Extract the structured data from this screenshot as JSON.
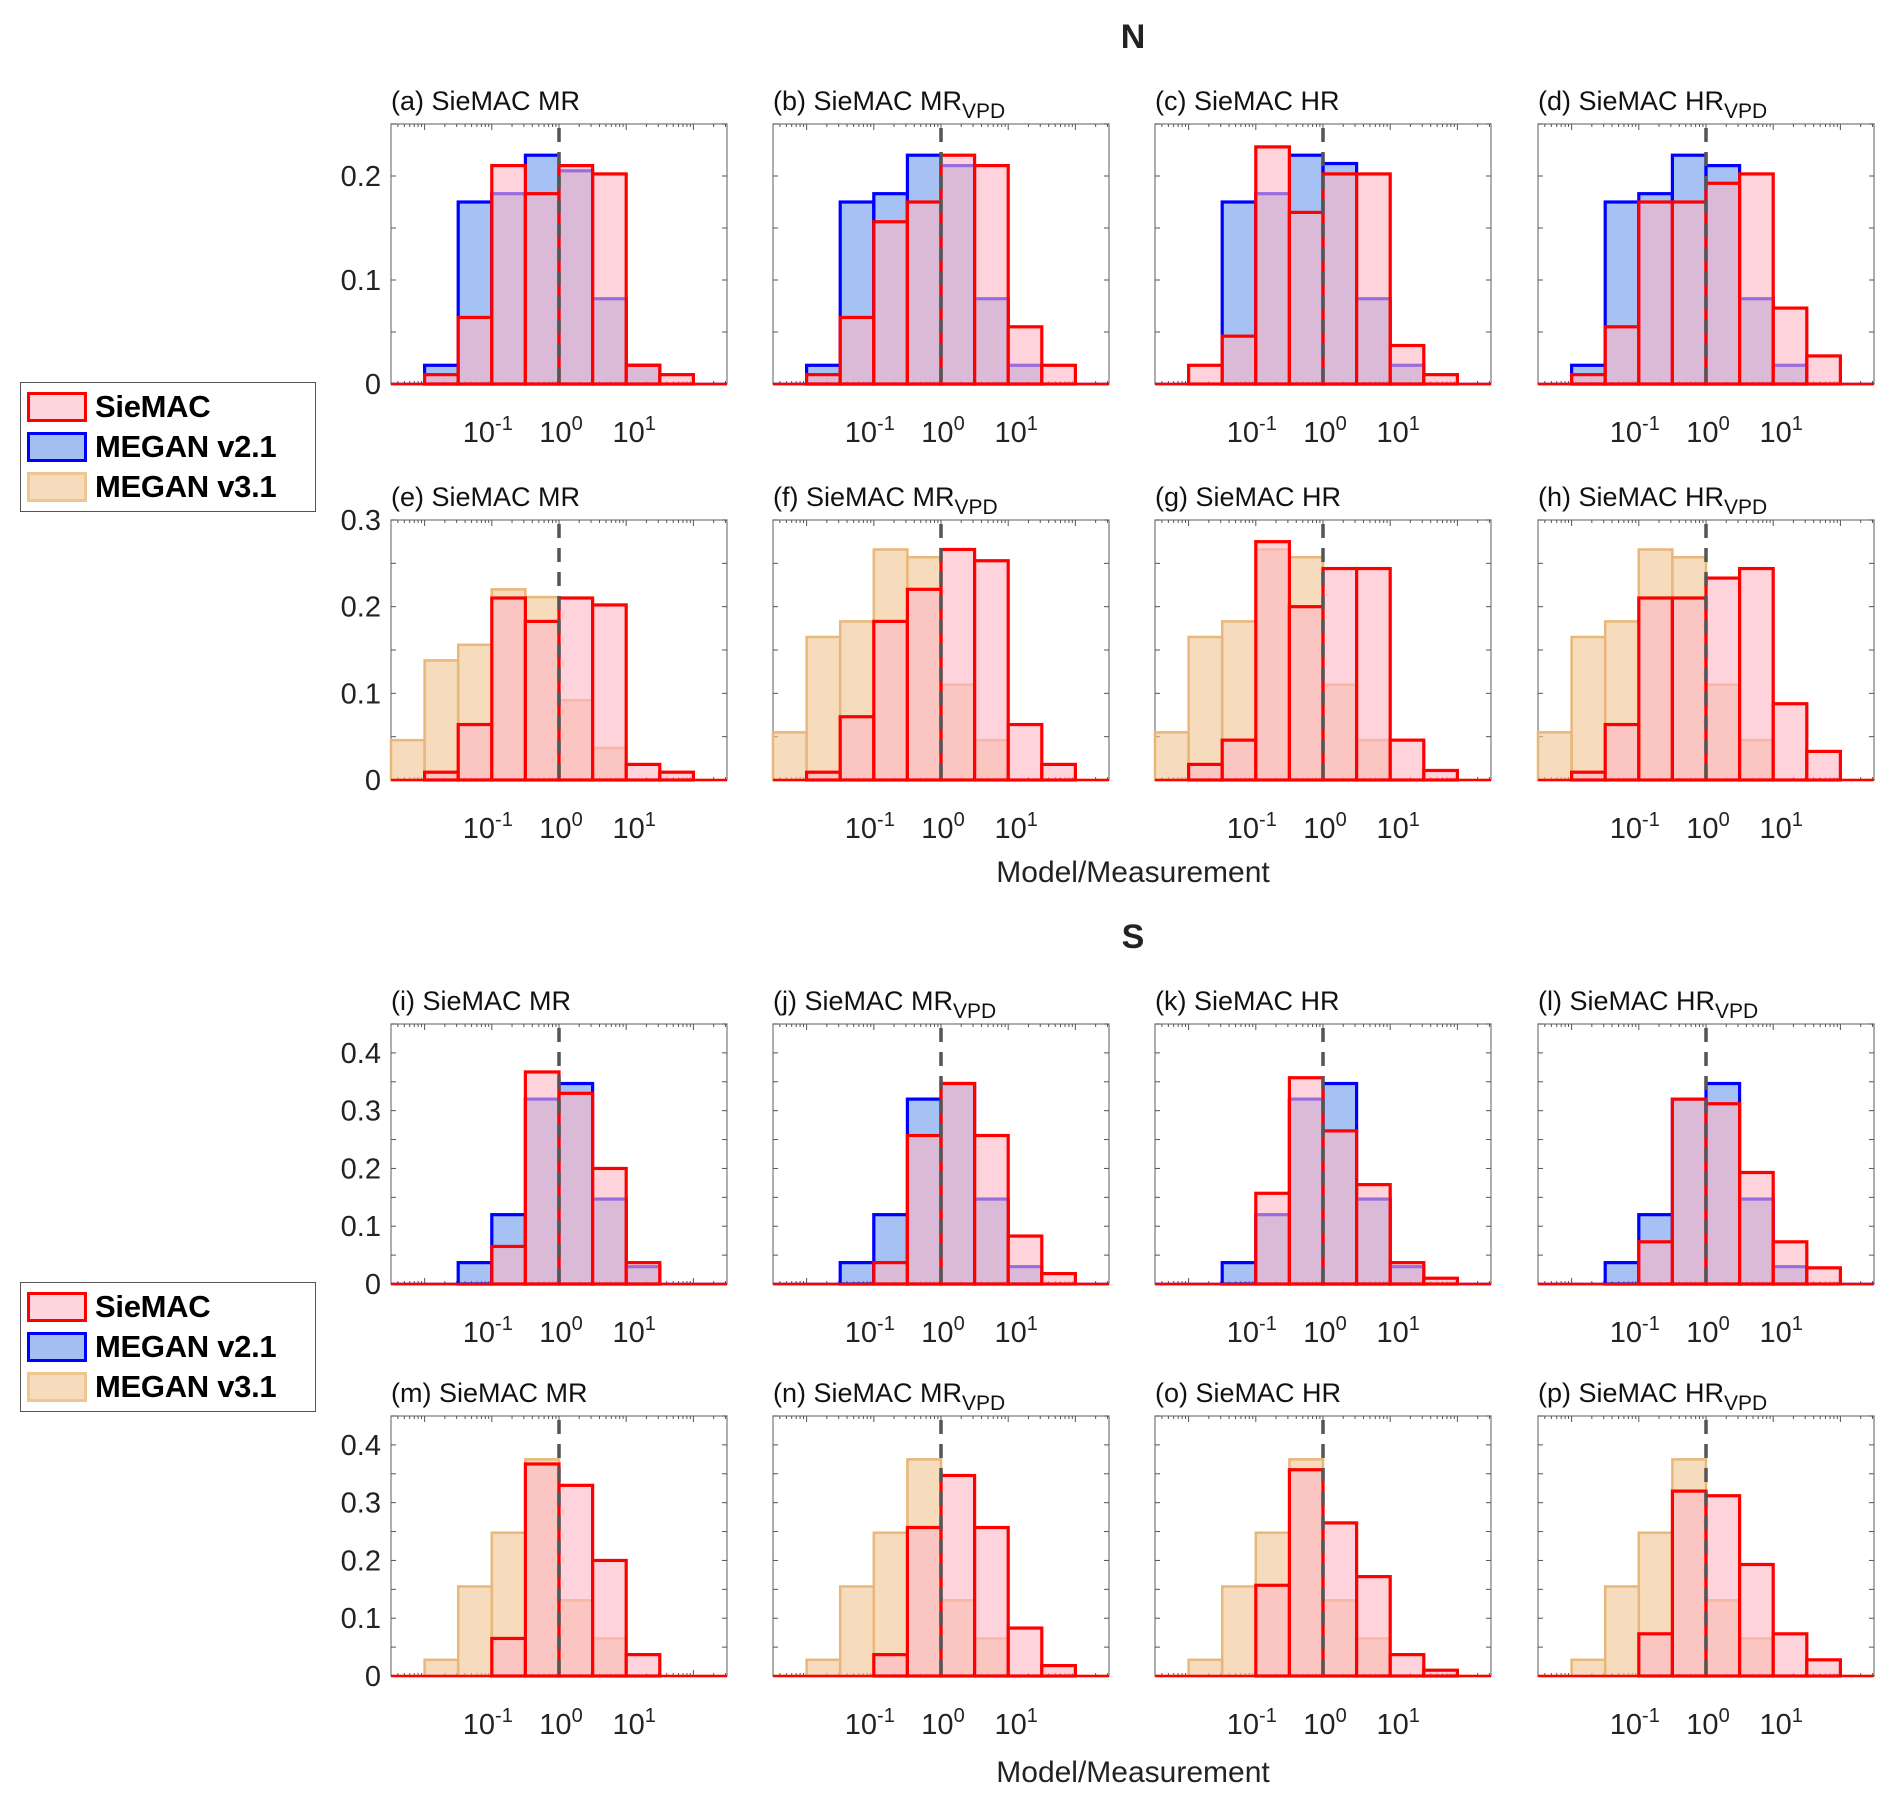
{
  "colors": {
    "siemac_edge": "#ff0000",
    "siemac_fill": "#ffb6c4",
    "megan21_edge": "#0000ff",
    "megan21_fill": "#4d84e8",
    "megan31_edge": "#e8b87a",
    "megan31_fill": "#f0c48f",
    "ref_line": "#555555"
  },
  "section_titles": {
    "north": "N",
    "south": "S"
  },
  "xlabel": "Model/Measurement",
  "legend": [
    {
      "key": "siemac",
      "label": "SieMAC"
    },
    {
      "key": "megan21",
      "label": "MEGAN v2.1"
    },
    {
      "key": "megan31",
      "label": "MEGAN v3.1"
    }
  ],
  "chart_data": {
    "type": "bar",
    "subtype": "histogram",
    "xscale": "log",
    "xlim": [
      -2.5,
      2.5
    ],
    "x_ticks": [
      "10^-1",
      "10^0",
      "10^1"
    ],
    "x_tick_values": [
      0.1,
      1,
      10
    ],
    "bin_edges_log10": [
      -2.5,
      -2.0,
      -1.5,
      -1.0,
      -0.5,
      0.0,
      0.5,
      1.0,
      1.5,
      2.0,
      2.5
    ],
    "reference_line": {
      "x": 1,
      "style": "dashed"
    },
    "ylabel": "",
    "panels": [
      {
        "id": "a",
        "title": "(a) SieMAC MR",
        "region": "N",
        "ylim": [
          0,
          0.25
        ],
        "yticks": [
          0,
          0.1,
          0.2
        ],
        "series": [
          {
            "name": "MEGAN v2.1",
            "key": "megan21",
            "values": [
              0,
              0.018,
              0.175,
              0.183,
              0.22,
              0.205,
              0.082,
              0.018,
              0,
              0,
              0
            ]
          },
          {
            "name": "SieMAC",
            "key": "siemac",
            "values": [
              0,
              0.009,
              0.064,
              0.21,
              0.183,
              0.21,
              0.202,
              0.018,
              0.009,
              0,
              0
            ]
          }
        ]
      },
      {
        "id": "b",
        "title": "(b) SieMAC MR",
        "title_sub": "VPD",
        "region": "N",
        "ylim": [
          0,
          0.25
        ],
        "yticks": [
          0,
          0.1,
          0.2
        ],
        "series": [
          {
            "name": "MEGAN v2.1",
            "key": "megan21",
            "values": [
              0,
              0.018,
              0.175,
              0.183,
              0.22,
              0.21,
              0.082,
              0.018,
              0,
              0,
              0
            ]
          },
          {
            "name": "SieMAC",
            "key": "siemac",
            "values": [
              0,
              0.009,
              0.064,
              0.156,
              0.175,
              0.22,
              0.21,
              0.055,
              0.018,
              0,
              0
            ]
          }
        ]
      },
      {
        "id": "c",
        "title": "(c) SieMAC HR",
        "region": "N",
        "ylim": [
          0,
          0.25
        ],
        "yticks": [
          0,
          0.1,
          0.2
        ],
        "series": [
          {
            "name": "MEGAN v2.1",
            "key": "megan21",
            "values": [
              0,
              0,
              0.175,
              0.183,
              0.22,
              0.212,
              0.082,
              0.018,
              0,
              0,
              0
            ]
          },
          {
            "name": "SieMAC",
            "key": "siemac",
            "values": [
              0,
              0.018,
              0.046,
              0.228,
              0.165,
              0.202,
              0.202,
              0.037,
              0.009,
              0,
              0
            ]
          }
        ]
      },
      {
        "id": "d",
        "title": "(d) SieMAC HR",
        "title_sub": "VPD",
        "region": "N",
        "ylim": [
          0,
          0.25
        ],
        "yticks": [
          0,
          0.1,
          0.2
        ],
        "series": [
          {
            "name": "MEGAN v2.1",
            "key": "megan21",
            "values": [
              0,
              0.018,
              0.175,
              0.183,
              0.22,
              0.21,
              0.082,
              0.018,
              0,
              0,
              0
            ]
          },
          {
            "name": "SieMAC",
            "key": "siemac",
            "values": [
              0,
              0.009,
              0.055,
              0.175,
              0.175,
              0.193,
              0.202,
              0.073,
              0.027,
              0,
              0
            ]
          }
        ]
      },
      {
        "id": "e",
        "title": "(e) SieMAC MR",
        "region": "N",
        "ylim": [
          0,
          0.3
        ],
        "yticks": [
          0,
          0.1,
          0.2,
          0.3
        ],
        "series": [
          {
            "name": "MEGAN v3.1",
            "key": "megan31",
            "values": [
              0.046,
              0.138,
              0.156,
              0.22,
              0.211,
              0.092,
              0.037,
              0,
              0,
              0,
              0
            ]
          },
          {
            "name": "SieMAC",
            "key": "siemac",
            "values": [
              0,
              0.009,
              0.064,
              0.21,
              0.183,
              0.21,
              0.202,
              0.018,
              0.009,
              0,
              0
            ]
          }
        ]
      },
      {
        "id": "f",
        "title": "(f) SieMAC MR",
        "title_sub": "VPD",
        "region": "N",
        "ylim": [
          0,
          0.3
        ],
        "yticks": [
          0,
          0.1,
          0.2,
          0.3
        ],
        "series": [
          {
            "name": "MEGAN v3.1",
            "key": "megan31",
            "values": [
              0.055,
              0.165,
              0.183,
              0.266,
              0.257,
              0.11,
              0.046,
              0,
              0,
              0,
              0
            ]
          },
          {
            "name": "SieMAC",
            "key": "siemac",
            "values": [
              0,
              0.009,
              0.073,
              0.183,
              0.22,
              0.266,
              0.253,
              0.064,
              0.018,
              0,
              0
            ]
          }
        ]
      },
      {
        "id": "g",
        "title": "(g) SieMAC HR",
        "region": "N",
        "ylim": [
          0,
          0.3
        ],
        "yticks": [
          0,
          0.1,
          0.2,
          0.3
        ],
        "series": [
          {
            "name": "MEGAN v3.1",
            "key": "megan31",
            "values": [
              0.055,
              0.165,
              0.183,
              0.266,
              0.257,
              0.11,
              0.046,
              0,
              0,
              0,
              0
            ]
          },
          {
            "name": "SieMAC",
            "key": "siemac",
            "values": [
              0,
              0.018,
              0.046,
              0.275,
              0.2,
              0.244,
              0.244,
              0.046,
              0.011,
              0,
              0
            ]
          }
        ]
      },
      {
        "id": "h",
        "title": "(h) SieMAC HR",
        "title_sub": "VPD",
        "region": "N",
        "ylim": [
          0,
          0.3
        ],
        "yticks": [
          0,
          0.1,
          0.2,
          0.3
        ],
        "series": [
          {
            "name": "MEGAN v3.1",
            "key": "megan31",
            "values": [
              0.055,
              0.165,
              0.183,
              0.266,
              0.257,
              0.11,
              0.046,
              0,
              0,
              0,
              0
            ]
          },
          {
            "name": "SieMAC",
            "key": "siemac",
            "values": [
              0,
              0.009,
              0.064,
              0.21,
              0.21,
              0.233,
              0.244,
              0.088,
              0.033,
              0,
              0
            ]
          }
        ]
      },
      {
        "id": "i",
        "title": "(i) SieMAC MR",
        "region": "S",
        "ylim": [
          0,
          0.45
        ],
        "yticks": [
          0,
          0.1,
          0.2,
          0.3,
          0.4
        ],
        "series": [
          {
            "name": "MEGAN v2.1",
            "key": "megan21",
            "values": [
              0,
              0,
              0.037,
              0.12,
              0.32,
              0.347,
              0.147,
              0.03,
              0,
              0,
              0
            ]
          },
          {
            "name": "SieMAC",
            "key": "siemac",
            "values": [
              0,
              0,
              0,
              0.065,
              0.367,
              0.33,
              0.2,
              0.037,
              0,
              0,
              0
            ]
          }
        ]
      },
      {
        "id": "j",
        "title": "(j) SieMAC MR",
        "title_sub": "VPD",
        "region": "S",
        "ylim": [
          0,
          0.45
        ],
        "yticks": [
          0,
          0.1,
          0.2,
          0.3,
          0.4
        ],
        "series": [
          {
            "name": "MEGAN v2.1",
            "key": "megan21",
            "values": [
              0,
              0,
              0.037,
              0.12,
              0.32,
              0.347,
              0.147,
              0.03,
              0,
              0,
              0
            ]
          },
          {
            "name": "SieMAC",
            "key": "siemac",
            "values": [
              0,
              0,
              0,
              0.037,
              0.257,
              0.347,
              0.257,
              0.083,
              0.018,
              0,
              0
            ]
          }
        ]
      },
      {
        "id": "k",
        "title": "(k) SieMAC HR",
        "region": "S",
        "ylim": [
          0,
          0.45
        ],
        "yticks": [
          0,
          0.1,
          0.2,
          0.3,
          0.4
        ],
        "series": [
          {
            "name": "MEGAN v2.1",
            "key": "megan21",
            "values": [
              0,
              0,
              0.037,
              0.12,
              0.32,
              0.347,
              0.147,
              0.03,
              0,
              0,
              0
            ]
          },
          {
            "name": "SieMAC",
            "key": "siemac",
            "values": [
              0,
              0,
              0,
              0.157,
              0.357,
              0.265,
              0.172,
              0.037,
              0.01,
              0,
              0
            ]
          }
        ]
      },
      {
        "id": "l",
        "title": "(l) SieMAC HR",
        "title_sub": "VPD",
        "region": "S",
        "ylim": [
          0,
          0.45
        ],
        "yticks": [
          0,
          0.1,
          0.2,
          0.3,
          0.4
        ],
        "series": [
          {
            "name": "MEGAN v2.1",
            "key": "megan21",
            "values": [
              0,
              0,
              0.037,
              0.12,
              0.32,
              0.347,
              0.147,
              0.03,
              0,
              0,
              0
            ]
          },
          {
            "name": "SieMAC",
            "key": "siemac",
            "values": [
              0,
              0,
              0,
              0.073,
              0.32,
              0.312,
              0.193,
              0.073,
              0.028,
              0,
              0
            ]
          }
        ]
      },
      {
        "id": "m",
        "title": "(m) SieMAC MR",
        "region": "S",
        "ylim": [
          0,
          0.45
        ],
        "yticks": [
          0,
          0.1,
          0.2,
          0.3,
          0.4
        ],
        "series": [
          {
            "name": "MEGAN v3.1",
            "key": "megan31",
            "values": [
              0,
              0.028,
              0.155,
              0.248,
              0.375,
              0.131,
              0.065,
              0,
              0,
              0,
              0
            ]
          },
          {
            "name": "SieMAC",
            "key": "siemac",
            "values": [
              0,
              0,
              0,
              0.065,
              0.367,
              0.33,
              0.2,
              0.037,
              0,
              0,
              0
            ]
          }
        ]
      },
      {
        "id": "n",
        "title": "(n) SieMAC MR",
        "title_sub": "VPD",
        "region": "S",
        "ylim": [
          0,
          0.45
        ],
        "yticks": [
          0,
          0.1,
          0.2,
          0.3,
          0.4
        ],
        "series": [
          {
            "name": "MEGAN v3.1",
            "key": "megan31",
            "values": [
              0,
              0.028,
              0.155,
              0.248,
              0.375,
              0.131,
              0.065,
              0,
              0,
              0,
              0
            ]
          },
          {
            "name": "SieMAC",
            "key": "siemac",
            "values": [
              0,
              0,
              0,
              0.037,
              0.257,
              0.347,
              0.257,
              0.083,
              0.018,
              0,
              0
            ]
          }
        ]
      },
      {
        "id": "o",
        "title": "(o) SieMAC HR",
        "region": "S",
        "ylim": [
          0,
          0.45
        ],
        "yticks": [
          0,
          0.1,
          0.2,
          0.3,
          0.4
        ],
        "series": [
          {
            "name": "MEGAN v3.1",
            "key": "megan31",
            "values": [
              0,
              0.028,
              0.155,
              0.248,
              0.375,
              0.131,
              0.065,
              0,
              0,
              0,
              0
            ]
          },
          {
            "name": "SieMAC",
            "key": "siemac",
            "values": [
              0,
              0,
              0,
              0.157,
              0.357,
              0.265,
              0.172,
              0.037,
              0.01,
              0,
              0
            ]
          }
        ]
      },
      {
        "id": "p",
        "title": "(p) SieMAC HR",
        "title_sub": "VPD",
        "region": "S",
        "ylim": [
          0,
          0.45
        ],
        "yticks": [
          0,
          0.1,
          0.2,
          0.3,
          0.4
        ],
        "series": [
          {
            "name": "MEGAN v3.1",
            "key": "megan31",
            "values": [
              0,
              0.028,
              0.155,
              0.248,
              0.375,
              0.131,
              0.065,
              0,
              0,
              0,
              0
            ]
          },
          {
            "name": "SieMAC",
            "key": "siemac",
            "values": [
              0,
              0,
              0,
              0.073,
              0.32,
              0.312,
              0.193,
              0.073,
              0.028,
              0,
              0
            ]
          }
        ]
      }
    ]
  }
}
